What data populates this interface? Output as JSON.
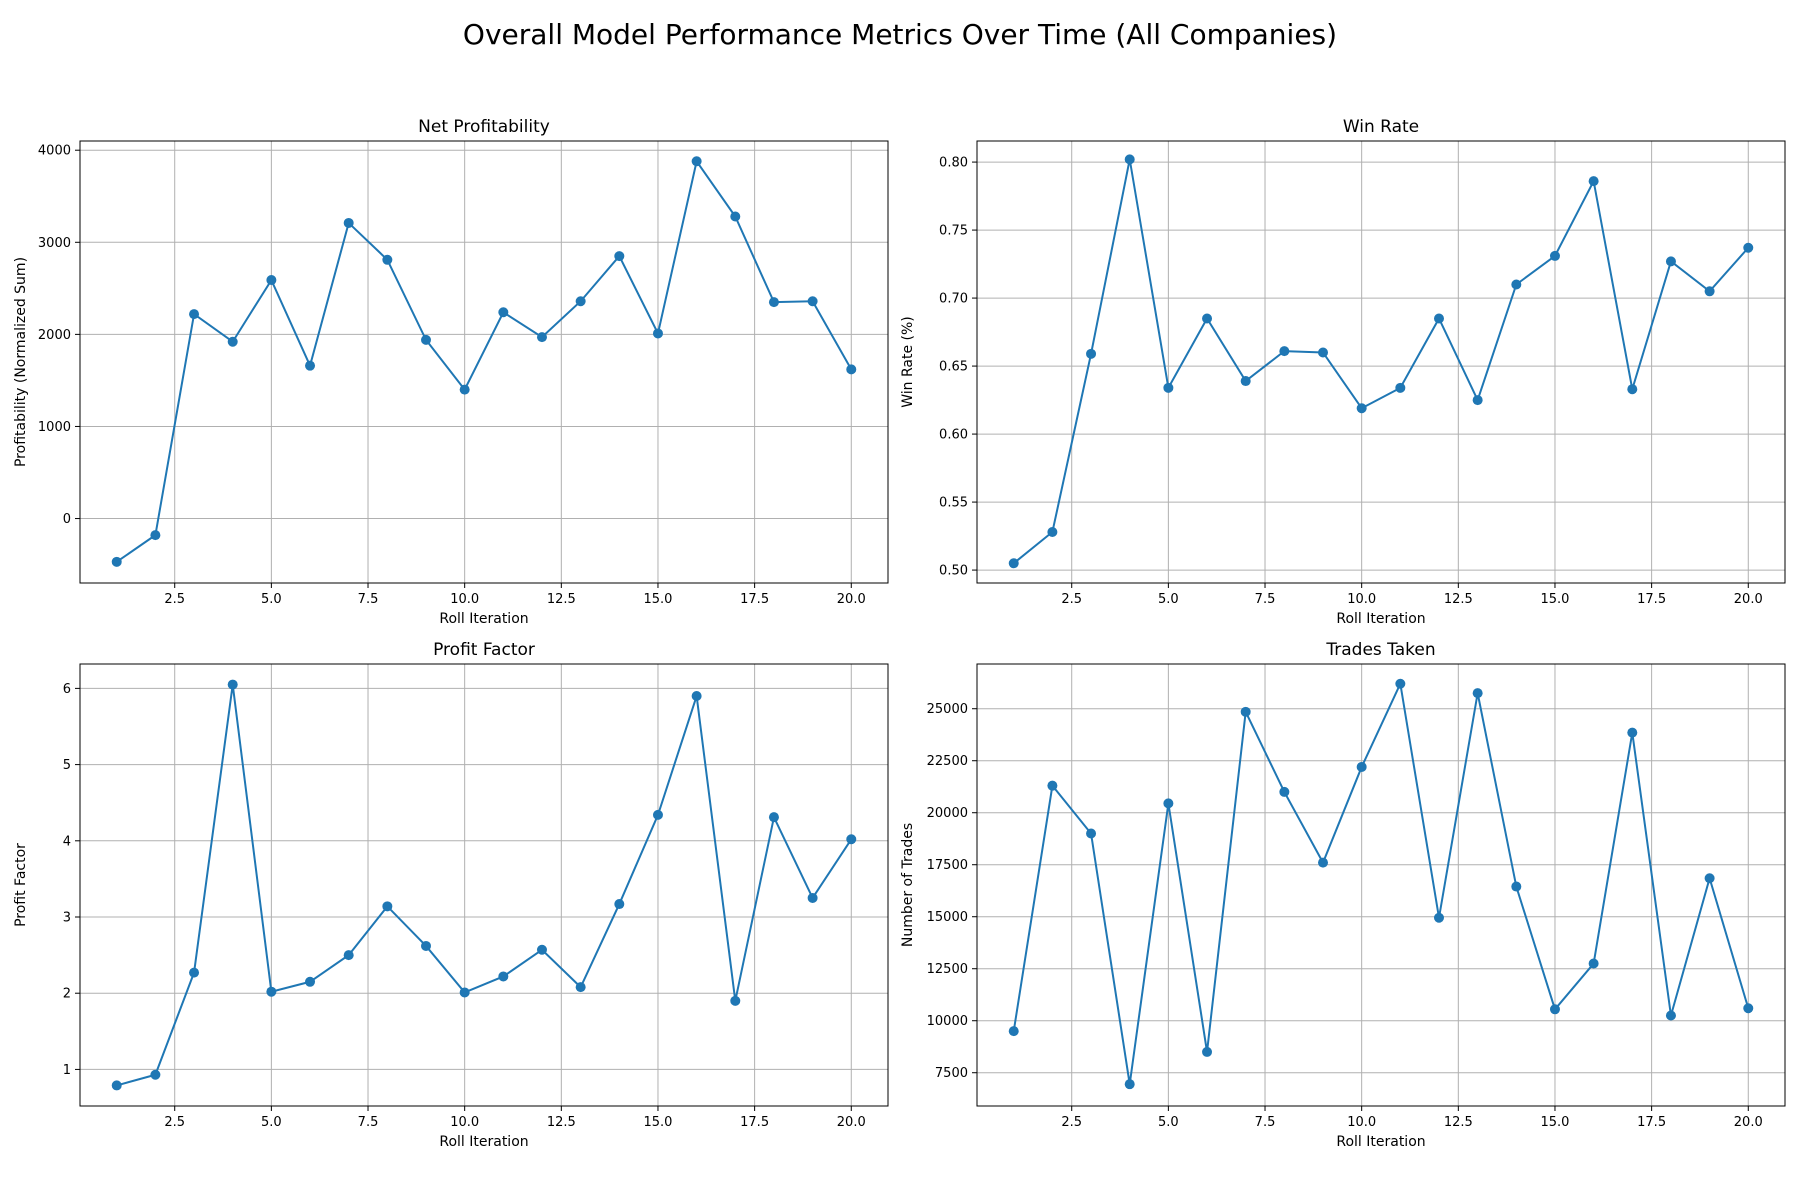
{
  "figure": {
    "title": "Overall Model Performance Metrics Over Time (All Companies)",
    "line_color": "#1f77b4"
  },
  "chart_data": [
    {
      "type": "line",
      "title": "Net Profitability",
      "xlabel": "Roll Iteration",
      "ylabel": "Profitability (Normalized Sum)",
      "xlim": [
        0.05,
        20.95
      ],
      "ylim": [
        -700,
        4100
      ],
      "xticks": [
        2.5,
        5.0,
        7.5,
        10.0,
        12.5,
        15.0,
        17.5,
        20.0
      ],
      "xtick_labels": [
        "2.5",
        "5.0",
        "7.5",
        "10.0",
        "12.5",
        "15.0",
        "17.5",
        "20.0"
      ],
      "yticks": [
        0,
        1000,
        2000,
        3000,
        4000
      ],
      "ytick_labels": [
        "0",
        "1000",
        "2000",
        "3000",
        "4000"
      ],
      "grid": true,
      "x": [
        1,
        2,
        3,
        4,
        5,
        6,
        7,
        8,
        9,
        10,
        11,
        12,
        13,
        14,
        15,
        16,
        17,
        18,
        19,
        20
      ],
      "series": [
        {
          "values": [
            -470,
            -180,
            2220,
            1920,
            2590,
            1660,
            3210,
            2810,
            1940,
            1400,
            2240,
            1970,
            2360,
            2850,
            2010,
            3880,
            3280,
            2350,
            2360,
            1620
          ]
        }
      ]
    },
    {
      "type": "line",
      "title": "Win Rate",
      "xlabel": "Roll Iteration",
      "ylabel": "Win Rate (%)",
      "xlim": [
        0.05,
        20.95
      ],
      "ylim": [
        0.4905,
        0.8155
      ],
      "xticks": [
        2.5,
        5.0,
        7.5,
        10.0,
        12.5,
        15.0,
        17.5,
        20.0
      ],
      "xtick_labels": [
        "2.5",
        "5.0",
        "7.5",
        "10.0",
        "12.5",
        "15.0",
        "17.5",
        "20.0"
      ],
      "yticks": [
        0.5,
        0.55,
        0.6,
        0.65,
        0.7,
        0.75,
        0.8
      ],
      "ytick_labels": [
        "0.50",
        "0.55",
        "0.60",
        "0.65",
        "0.70",
        "0.75",
        "0.80"
      ],
      "grid": true,
      "x": [
        1,
        2,
        3,
        4,
        5,
        6,
        7,
        8,
        9,
        10,
        11,
        12,
        13,
        14,
        15,
        16,
        17,
        18,
        19,
        20
      ],
      "series": [
        {
          "values": [
            0.505,
            0.528,
            0.659,
            0.802,
            0.634,
            0.685,
            0.639,
            0.661,
            0.66,
            0.619,
            0.634,
            0.685,
            0.625,
            0.71,
            0.731,
            0.786,
            0.633,
            0.727,
            0.705,
            0.737
          ]
        }
      ]
    },
    {
      "type": "line",
      "title": "Profit Factor",
      "xlabel": "Roll Iteration",
      "ylabel": "Profit Factor",
      "xlim": [
        0.05,
        20.95
      ],
      "ylim": [
        0.52,
        6.32
      ],
      "xticks": [
        2.5,
        5.0,
        7.5,
        10.0,
        12.5,
        15.0,
        17.5,
        20.0
      ],
      "xtick_labels": [
        "2.5",
        "5.0",
        "7.5",
        "10.0",
        "12.5",
        "15.0",
        "17.5",
        "20.0"
      ],
      "yticks": [
        1,
        2,
        3,
        4,
        5,
        6
      ],
      "ytick_labels": [
        "1",
        "2",
        "3",
        "4",
        "5",
        "6"
      ],
      "grid": true,
      "x": [
        1,
        2,
        3,
        4,
        5,
        6,
        7,
        8,
        9,
        10,
        11,
        12,
        13,
        14,
        15,
        16,
        17,
        18,
        19,
        20
      ],
      "series": [
        {
          "values": [
            0.79,
            0.93,
            2.27,
            6.05,
            2.02,
            2.15,
            2.5,
            3.14,
            2.62,
            2.01,
            2.22,
            2.57,
            2.08,
            3.17,
            4.34,
            5.9,
            1.9,
            4.31,
            3.25,
            4.02
          ]
        }
      ]
    },
    {
      "type": "line",
      "title": "Trades Taken",
      "xlabel": "Roll Iteration",
      "ylabel": "Number of Trades",
      "xlim": [
        0.05,
        20.95
      ],
      "ylim": [
        5900,
        27150
      ],
      "xticks": [
        2.5,
        5.0,
        7.5,
        10.0,
        12.5,
        15.0,
        17.5,
        20.0
      ],
      "xtick_labels": [
        "2.5",
        "5.0",
        "7.5",
        "10.0",
        "12.5",
        "15.0",
        "17.5",
        "20.0"
      ],
      "yticks": [
        7500,
        10000,
        12500,
        15000,
        17500,
        20000,
        22500,
        25000
      ],
      "ytick_labels": [
        "7500",
        "10000",
        "12500",
        "15000",
        "17500",
        "20000",
        "22500",
        "25000"
      ],
      "grid": true,
      "x": [
        1,
        2,
        3,
        4,
        5,
        6,
        7,
        8,
        9,
        10,
        11,
        12,
        13,
        14,
        15,
        16,
        17,
        18,
        19,
        20
      ],
      "series": [
        {
          "values": [
            9500,
            21300,
            19000,
            6950,
            20450,
            8500,
            24850,
            21000,
            17600,
            22200,
            26200,
            14950,
            25750,
            16450,
            10550,
            12750,
            23850,
            10250,
            16850,
            10600
          ]
        }
      ]
    }
  ]
}
